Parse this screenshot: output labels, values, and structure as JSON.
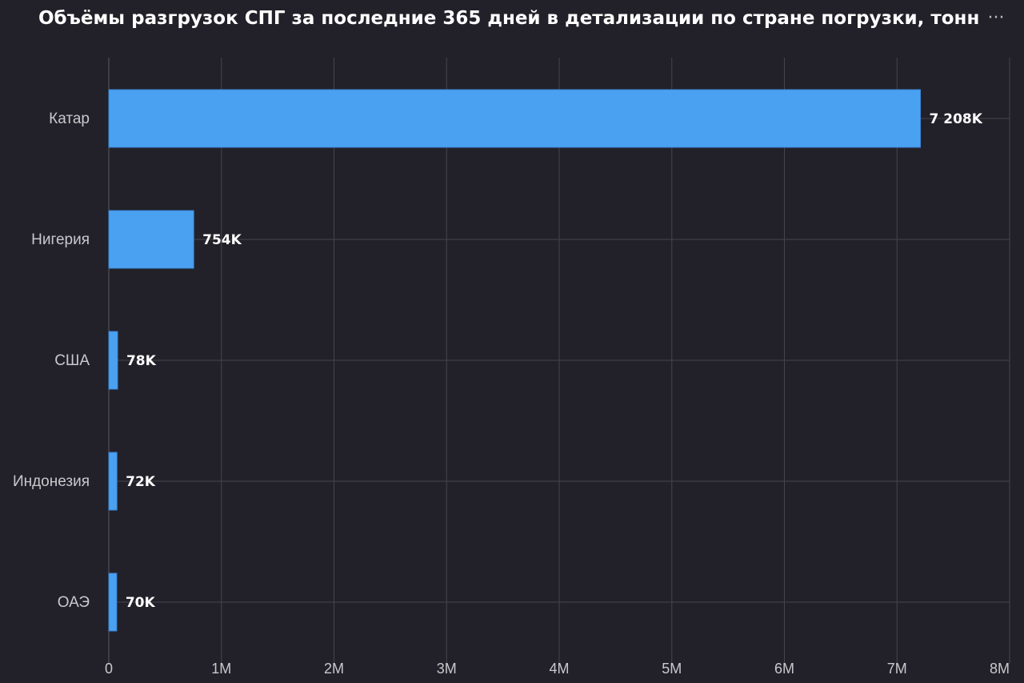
{
  "header": {
    "title": "Объёмы разгрузок СПГ за последние 365 дней в детализации по стране погрузки, тонн",
    "menu_icon": "ellipsis-icon",
    "menu_glyph": "···"
  },
  "colors": {
    "background": "#222129",
    "bar": "#4aa1f1",
    "bar_border": "#3c88d6",
    "grid": "#45444c",
    "axis": "#5a5962"
  },
  "chart_data": {
    "type": "bar",
    "orientation": "horizontal",
    "title": "Объёмы разгрузок СПГ за последние 365 дней в детализации по стране погрузки, тонн",
    "xlabel": "",
    "ylabel": "",
    "categories": [
      "Катар",
      "Нигерия",
      "США",
      "Индонезия",
      "ОАЭ"
    ],
    "values": [
      7208000,
      754000,
      78000,
      72000,
      70000
    ],
    "data_labels": [
      "7 208K",
      "754K",
      "78K",
      "72K",
      "70K"
    ],
    "xlim": [
      0,
      8000000
    ],
    "xticks": [
      0,
      1000000,
      2000000,
      3000000,
      4000000,
      5000000,
      6000000,
      7000000,
      8000000
    ],
    "xtick_labels": [
      "0",
      "1M",
      "2M",
      "3M",
      "4M",
      "5M",
      "6M",
      "7M",
      "8M"
    ],
    "grid": true,
    "legend": "none"
  }
}
